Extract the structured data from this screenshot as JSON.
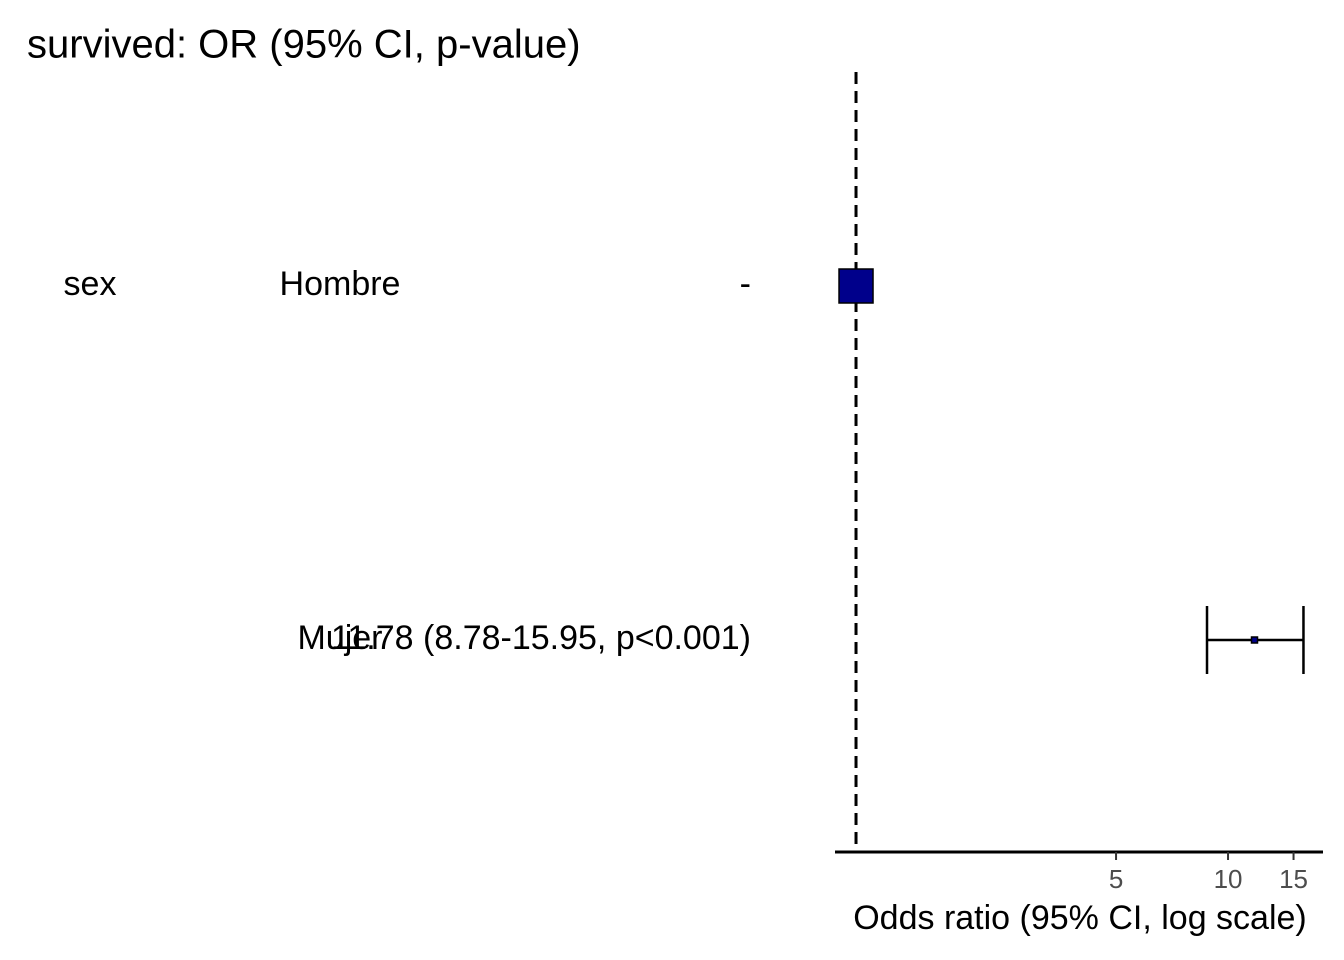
{
  "chart_data": {
    "type": "forest",
    "title": "survived: OR (95% CI, p-value)",
    "xlabel": "Odds ratio (95% CI, log scale)",
    "variables": [
      "sex",
      null
    ],
    "categories": [
      "Hombre",
      "Mujer"
    ],
    "or_text": [
      "-",
      "11.78 (8.78-15.95, p<0.001)"
    ],
    "values": [
      1,
      11.78
    ],
    "lower": [
      null,
      8.78
    ],
    "upper": [
      null,
      15.95
    ],
    "ref_line": 1,
    "color": "#00008b",
    "xscale": "log",
    "xlim": [
      0.878,
      18.0
    ],
    "xticks": [
      5,
      10,
      15
    ]
  }
}
